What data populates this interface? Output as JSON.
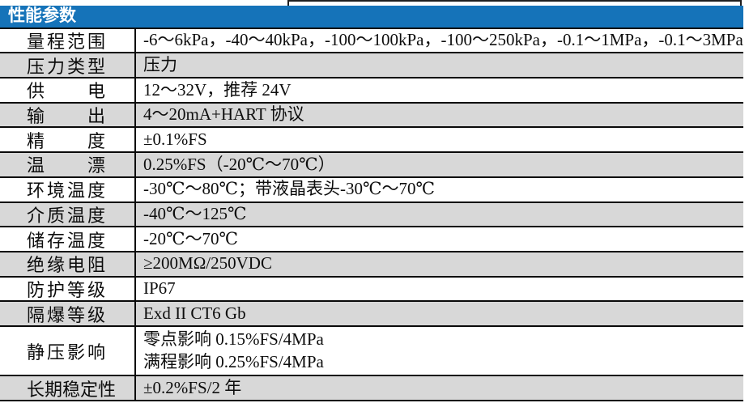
{
  "table": {
    "title": "性能参数",
    "rows": [
      {
        "label": "量程范围",
        "value": "-6～6kPa，-40～40kPa，-100～100kPa，-100～250kPa，-0.1～1MPa，-0.1～3MPa"
      },
      {
        "label": "压力类型",
        "value": "压力"
      },
      {
        "label": "供电",
        "value": "12～32V，推荐 24V"
      },
      {
        "label": "输出",
        "value": "4～20mA+HART 协议"
      },
      {
        "label": "精度",
        "value": "±0.1%FS"
      },
      {
        "label": "温漂",
        "value": "0.25%FS（-20℃～70℃）"
      },
      {
        "label": "环境温度",
        "value": "-30℃～80℃；带液晶表头-30℃～70℃"
      },
      {
        "label": "介质温度",
        "value": "-40℃～125℃"
      },
      {
        "label": "储存温度",
        "value": "-20℃～70℃"
      },
      {
        "label": "绝缘电阻",
        "value": "≥200MΩ/250VDC"
      },
      {
        "label": "防护等级",
        "value": "IP67"
      },
      {
        "label": "隔爆等级",
        "value": "Exd II CT6 Gb"
      },
      {
        "label": "静压影响",
        "value_lines": [
          "零点影响 0.15%FS/4MPa",
          "满程影响 0.25%FS/4MPa"
        ]
      },
      {
        "label": "长期稳定性",
        "value": "±0.2%FS/2 年"
      }
    ]
  },
  "colors": {
    "header_bg": "#1573b9",
    "header_text": "#ffffff",
    "shaded_row_bg": "#d8d8d8",
    "border": "#0a0a0a"
  }
}
